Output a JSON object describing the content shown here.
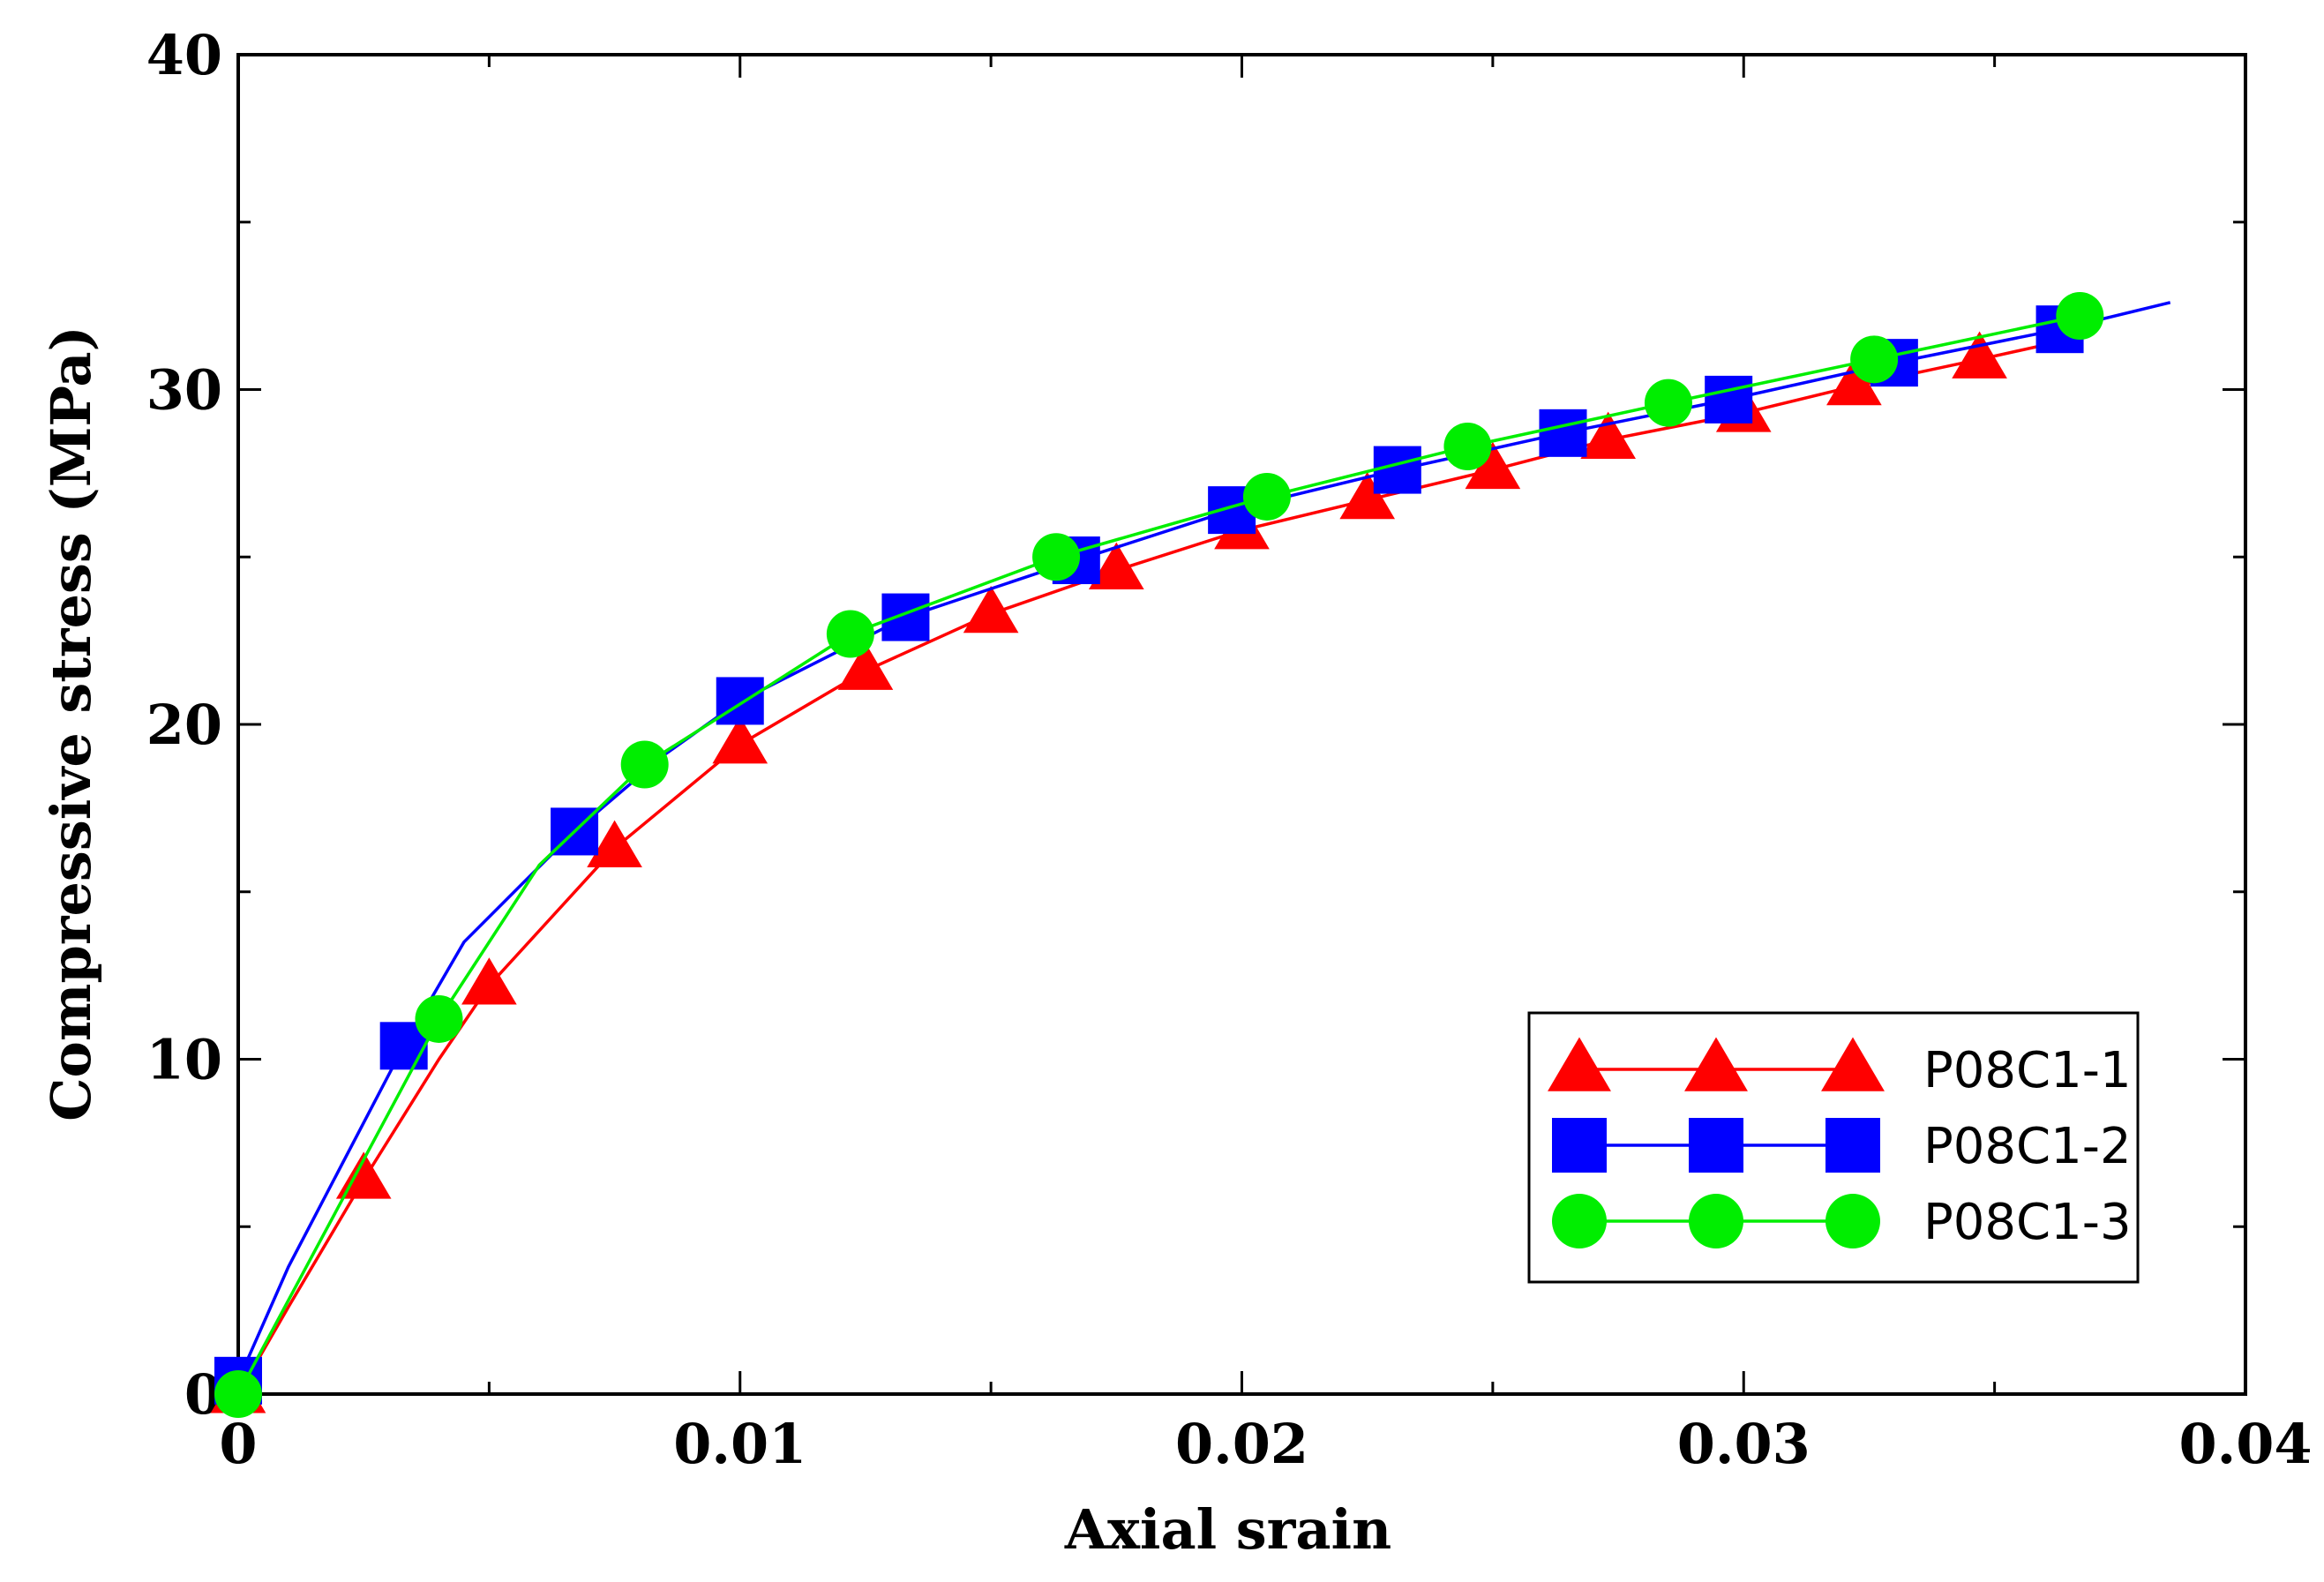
{
  "chart_data": {
    "type": "line",
    "title": "",
    "xlabel": "Axial srain",
    "ylabel": "Compressive stress (MPa)",
    "xlim": [
      0,
      0.04
    ],
    "ylim": [
      0,
      40
    ],
    "xticks": [
      0,
      0.01,
      0.02,
      0.03,
      0.04
    ],
    "xtick_labels": [
      "0",
      "0.01",
      "0.02",
      "0.03",
      "0.04"
    ],
    "yticks": [
      0,
      10,
      20,
      30,
      40
    ],
    "ytick_labels": [
      "0",
      "10",
      "20",
      "30",
      "40"
    ],
    "grid": false,
    "legend_position": "bottom-right",
    "series": [
      {
        "name": "P08C1-1",
        "color": "#ff0000",
        "marker": "triangle",
        "line": [
          [
            0,
            0
          ],
          [
            0.001,
            2.6
          ],
          [
            0.0025,
            6.4
          ],
          [
            0.004,
            10.0
          ],
          [
            0.005,
            12.2
          ],
          [
            0.0075,
            16.3
          ],
          [
            0.01,
            19.4
          ],
          [
            0.0125,
            21.6
          ],
          [
            0.015,
            23.3
          ],
          [
            0.0175,
            24.6
          ],
          [
            0.02,
            25.8
          ],
          [
            0.0225,
            26.7
          ],
          [
            0.025,
            27.6
          ],
          [
            0.0273,
            28.5
          ],
          [
            0.03,
            29.3
          ],
          [
            0.0322,
            30.1
          ],
          [
            0.0347,
            30.9
          ],
          [
            0.0362,
            31.4
          ]
        ],
        "markers": [
          [
            0,
            0
          ],
          [
            0.0025,
            6.4
          ],
          [
            0.005,
            12.2
          ],
          [
            0.0075,
            16.3
          ],
          [
            0.01,
            19.4
          ],
          [
            0.0125,
            21.6
          ],
          [
            0.015,
            23.3
          ],
          [
            0.0175,
            24.6
          ],
          [
            0.02,
            25.8
          ],
          [
            0.0225,
            26.7
          ],
          [
            0.025,
            27.6
          ],
          [
            0.0273,
            28.5
          ],
          [
            0.03,
            29.3
          ],
          [
            0.0322,
            30.1
          ],
          [
            0.0347,
            30.9
          ]
        ]
      },
      {
        "name": "P08C1-2",
        "color": "#0000ff",
        "marker": "square",
        "line": [
          [
            0,
            0.4
          ],
          [
            0.001,
            3.8
          ],
          [
            0.0033,
            10.4
          ],
          [
            0.0045,
            13.5
          ],
          [
            0.0067,
            16.8
          ],
          [
            0.0085,
            19.1
          ],
          [
            0.01,
            20.7
          ],
          [
            0.0133,
            23.2
          ],
          [
            0.0167,
            24.9
          ],
          [
            0.0198,
            26.4
          ],
          [
            0.0231,
            27.6
          ],
          [
            0.0264,
            28.7
          ],
          [
            0.0297,
            29.7
          ],
          [
            0.033,
            30.8
          ],
          [
            0.0363,
            31.8
          ],
          [
            0.0385,
            32.6
          ]
        ],
        "markers": [
          [
            0,
            0.4
          ],
          [
            0.0033,
            10.4
          ],
          [
            0.0067,
            16.8
          ],
          [
            0.01,
            20.7
          ],
          [
            0.0133,
            23.2
          ],
          [
            0.0167,
            24.9
          ],
          [
            0.0198,
            26.4
          ],
          [
            0.0231,
            27.6
          ],
          [
            0.0264,
            28.7
          ],
          [
            0.0297,
            29.7
          ],
          [
            0.033,
            30.8
          ],
          [
            0.0363,
            31.8
          ]
        ]
      },
      {
        "name": "P08C1-3",
        "color": "#00ee00",
        "marker": "circle",
        "line": [
          [
            0,
            0
          ],
          [
            0.0015,
            4.2
          ],
          [
            0.004,
            11.2
          ],
          [
            0.006,
            15.8
          ],
          [
            0.0081,
            18.8
          ],
          [
            0.0122,
            22.7
          ],
          [
            0.0163,
            25.0
          ],
          [
            0.0205,
            26.8
          ],
          [
            0.0245,
            28.3
          ],
          [
            0.0285,
            29.6
          ],
          [
            0.0326,
            30.9
          ],
          [
            0.0367,
            32.2
          ]
        ],
        "markers": [
          [
            0,
            0
          ],
          [
            0.004,
            11.2
          ],
          [
            0.0081,
            18.8
          ],
          [
            0.0122,
            22.7
          ],
          [
            0.0163,
            25.0
          ],
          [
            0.0205,
            26.8
          ],
          [
            0.0245,
            28.3
          ],
          [
            0.0285,
            29.6
          ],
          [
            0.0326,
            30.9
          ],
          [
            0.0367,
            32.2
          ]
        ]
      }
    ]
  }
}
